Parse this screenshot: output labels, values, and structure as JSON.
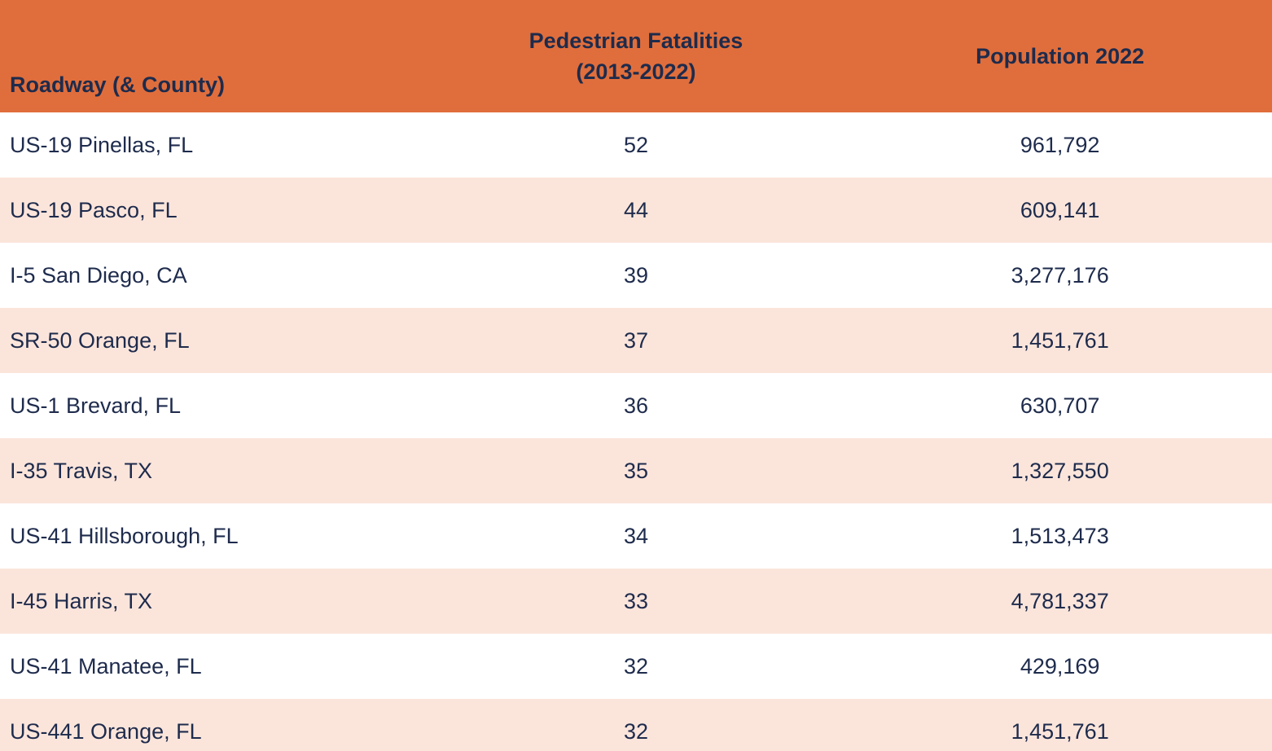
{
  "colors": {
    "header_bg": "#E06E3C",
    "row_bg": "#FFFFFF",
    "row_alt_bg": "#FBE5DB",
    "text": "#1E2B4C"
  },
  "table": {
    "headers": {
      "roadway": "Roadway (& County)",
      "fatalities_line1": "Pedestrian Fatalities",
      "fatalities_line2": "(2013-2022)",
      "population": "Population 2022"
    },
    "rows": [
      {
        "roadway": "US-19 Pinellas, FL",
        "fatalities": "52",
        "population": "961,792"
      },
      {
        "roadway": "US-19 Pasco, FL",
        "fatalities": "44",
        "population": "609,141"
      },
      {
        "roadway": "I-5 San Diego, CA",
        "fatalities": "39",
        "population": "3,277,176"
      },
      {
        "roadway": "SR-50 Orange, FL",
        "fatalities": "37",
        "population": "1,451,761"
      },
      {
        "roadway": "US-1 Brevard, FL",
        "fatalities": "36",
        "population": "630,707"
      },
      {
        "roadway": "I-35 Travis, TX",
        "fatalities": "35",
        "population": "1,327,550"
      },
      {
        "roadway": "US-41 Hillsborough, FL",
        "fatalities": "34",
        "population": "1,513,473"
      },
      {
        "roadway": "I-45 Harris, TX",
        "fatalities": "33",
        "population": "4,781,337"
      },
      {
        "roadway": "US-41 Manatee, FL",
        "fatalities": "32",
        "population": "429,169"
      },
      {
        "roadway": "US-441 Orange, FL",
        "fatalities": "32",
        "population": "1,451,761"
      }
    ]
  },
  "chart_data": {
    "type": "table",
    "title": "",
    "columns": [
      "Roadway (& County)",
      "Pedestrian Fatalities (2013-2022)",
      "Population 2022"
    ],
    "rows": [
      [
        "US-19 Pinellas, FL",
        52,
        961792
      ],
      [
        "US-19 Pasco, FL",
        44,
        609141
      ],
      [
        "I-5 San Diego, CA",
        39,
        3277176
      ],
      [
        "SR-50 Orange, FL",
        37,
        1451761
      ],
      [
        "US-1 Brevard, FL",
        36,
        630707
      ],
      [
        "I-35 Travis, TX",
        35,
        1327550
      ],
      [
        "US-41 Hillsborough, FL",
        34,
        1513473
      ],
      [
        "I-45 Harris, TX",
        33,
        4781337
      ],
      [
        "US-41 Manatee, FL",
        32,
        429169
      ],
      [
        "US-441 Orange, FL",
        32,
        1451761
      ]
    ],
    "layout_hints": {
      "header_background": "#E06E3C",
      "alternating_row_background": "#FBE5DB",
      "text_color": "#1E2B4C",
      "column_alignment": [
        "left",
        "center",
        "center"
      ]
    }
  }
}
